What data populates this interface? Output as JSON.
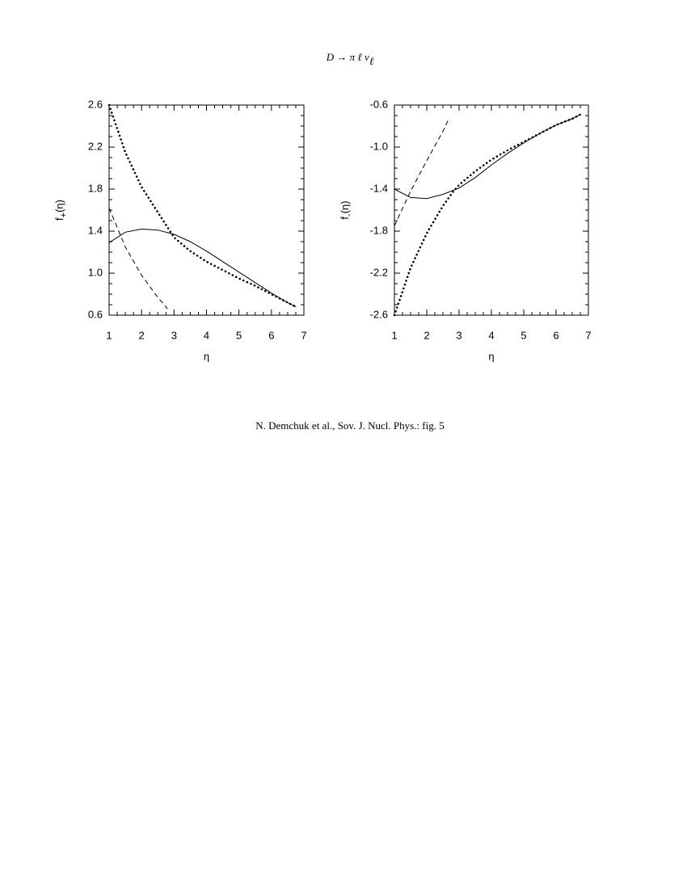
{
  "figure_title": {
    "main": "D → π ℓ ν",
    "sub": "ℓ"
  },
  "caption": "N. Demchuk et al., Sov. J. Nucl. Phys.: fig. 5",
  "chart_data": [
    {
      "type": "line",
      "xlabel": "η",
      "ylabel": {
        "base": "f",
        "sub": "+",
        "rest": "(η)"
      },
      "xlim": [
        1,
        7
      ],
      "ylim": [
        0.6,
        2.6
      ],
      "xticks": [
        1,
        2,
        3,
        4,
        5,
        6,
        7
      ],
      "yticks": [
        0.6,
        {
          "value": 1,
          "label": "1.0"
        },
        1.4,
        1.8,
        2.2,
        2.6
      ],
      "series": [
        {
          "color": "#000000",
          "style": "solid",
          "x": [
            1,
            1.5,
            2,
            2.5,
            3,
            3.5,
            4,
            4.5,
            5,
            5.5,
            6,
            6.5,
            6.75
          ],
          "values": [
            1.29,
            1.39,
            1.42,
            1.41,
            1.37,
            1.3,
            1.21,
            1.11,
            1.01,
            0.91,
            0.81,
            0.72,
            0.68
          ]
        },
        {
          "color": "#000000",
          "style": "dotted",
          "x": [
            1,
            1.5,
            2,
            2.5,
            3,
            3.5,
            4,
            4.5,
            5,
            5.5,
            6,
            6.5,
            6.75
          ],
          "values": [
            2.6,
            2.15,
            1.82,
            1.58,
            1.34,
            1.21,
            1.11,
            1.03,
            0.95,
            0.88,
            0.8,
            0.72,
            0.68
          ]
        },
        {
          "color": "#000000",
          "style": "dashed",
          "x": [
            1,
            1.5,
            2,
            2.5,
            2.8
          ],
          "values": [
            1.62,
            1.25,
            0.98,
            0.77,
            0.66
          ]
        }
      ]
    },
    {
      "type": "line",
      "xlabel": "η",
      "ylabel": {
        "base": "f",
        "sub": "-",
        "rest": "(η)"
      },
      "xlim": [
        1,
        7
      ],
      "ylim": [
        -2.6,
        -0.6
      ],
      "xticks": [
        1,
        2,
        3,
        4,
        5,
        6,
        7
      ],
      "yticks": [
        -2.6,
        -2.2,
        -1.8,
        -1.4,
        {
          "value": -1,
          "label": "-1.0"
        },
        -0.6
      ],
      "series": [
        {
          "color": "#000000",
          "style": "solid",
          "x": [
            1,
            1.5,
            2,
            2.5,
            3,
            3.5,
            4,
            4.5,
            5,
            5.5,
            6,
            6.5,
            6.75
          ],
          "values": [
            -1.4,
            -1.48,
            -1.49,
            -1.45,
            -1.39,
            -1.29,
            -1.17,
            -1.06,
            -0.96,
            -0.87,
            -0.79,
            -0.73,
            -0.69
          ]
        },
        {
          "color": "#000000",
          "style": "dotted",
          "x": [
            1,
            1.5,
            2,
            2.5,
            2.8,
            3,
            3.5,
            4,
            4.5,
            5,
            5.5,
            6,
            6.5,
            6.75
          ],
          "values": [
            -2.6,
            -2.15,
            -1.82,
            -1.56,
            -1.43,
            -1.36,
            -1.23,
            -1.12,
            -1.03,
            -0.95,
            -0.87,
            -0.79,
            -0.73,
            -0.69
          ]
        },
        {
          "color": "#000000",
          "style": "dashed",
          "x": [
            1,
            1.5,
            2,
            2.5,
            2.7
          ],
          "values": [
            -1.75,
            -1.42,
            -1.13,
            -0.85,
            -0.72
          ]
        }
      ]
    }
  ]
}
